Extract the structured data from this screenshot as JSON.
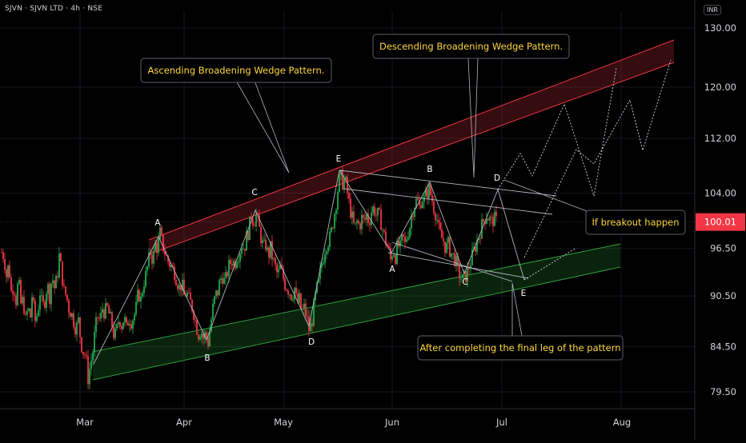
{
  "header": {
    "symbol_line": "SJVN · SJVN LTD · 4h · NSE"
  },
  "currency_label": "INR",
  "colors": {
    "up": "#22ab4e",
    "down": "#f23645",
    "bg": "#000000",
    "text": "#d1d4dc",
    "callout_text": "#ffd740",
    "price_tag": "#f23645",
    "red_channel": "#f23645",
    "green_channel": "#2e9e3c"
  },
  "chart_data": {
    "type": "candlestick",
    "title": "",
    "y_scale": "log",
    "ylim": [
      78,
      132
    ],
    "y_ticks": [
      "130.00",
      "120.00",
      "112.00",
      "104.00",
      "96.50",
      "90.50",
      "84.50",
      "79.50"
    ],
    "x_ticks": [
      "Mar",
      "Apr",
      "May",
      "Jun",
      "Jul",
      "Aug"
    ],
    "last_price": "100.01",
    "ohlc_path": [
      [
        0,
        96
      ],
      [
        3,
        95.5
      ],
      [
        6,
        93
      ],
      [
        9,
        94.5
      ],
      [
        12,
        91
      ],
      [
        15,
        92
      ],
      [
        18,
        90
      ],
      [
        21,
        92.5
      ],
      [
        24,
        89.5
      ],
      [
        27,
        90
      ],
      [
        30,
        87.5
      ],
      [
        33,
        89
      ],
      [
        36,
        88
      ],
      [
        38,
        90.5
      ],
      [
        42,
        87.5
      ],
      [
        45,
        88.5
      ],
      [
        48,
        91
      ],
      [
        51,
        89
      ],
      [
        54,
        90
      ],
      [
        57,
        92
      ],
      [
        60,
        90.5
      ],
      [
        63,
        93
      ],
      [
        66,
        91.5
      ],
      [
        69,
        92.5
      ],
      [
        72,
        95.5
      ],
      [
        75,
        93.5
      ],
      [
        78,
        91
      ],
      [
        81,
        90.5
      ],
      [
        84,
        89
      ],
      [
        87,
        88.5
      ],
      [
        90,
        87.5
      ],
      [
        93,
        86.5
      ],
      [
        96,
        87.5
      ],
      [
        99,
        85
      ],
      [
        102,
        84
      ],
      [
        105,
        83.5
      ],
      [
        108,
        81
      ],
      [
        111,
        82.5
      ],
      [
        114,
        84
      ],
      [
        117,
        86.5
      ],
      [
        120,
        88
      ],
      [
        123,
        87.5
      ],
      [
        126,
        89
      ],
      [
        129,
        88.5
      ],
      [
        132,
        89
      ],
      [
        135,
        88
      ],
      [
        138,
        87
      ],
      [
        141,
        85.5
      ],
      [
        144,
        86.5
      ],
      [
        147,
        88
      ],
      [
        150,
        87
      ],
      [
        153,
        88
      ],
      [
        156,
        86.5
      ],
      [
        159,
        88
      ],
      [
        162,
        87.5
      ],
      [
        165,
        88
      ],
      [
        168,
        89
      ],
      [
        171,
        91
      ],
      [
        174,
        90
      ],
      [
        177,
        92
      ],
      [
        180,
        93
      ],
      [
        183,
        94.5
      ],
      [
        186,
        96
      ],
      [
        189,
        95
      ],
      [
        192,
        97
      ],
      [
        195,
        96.5
      ],
      [
        198,
        98.5
      ],
      [
        201,
        97
      ],
      [
        204,
        96
      ],
      [
        207,
        95
      ],
      [
        210,
        94.5
      ],
      [
        213,
        94
      ],
      [
        216,
        93.5
      ],
      [
        219,
        92.5
      ],
      [
        222,
        91.5
      ],
      [
        225,
        92
      ],
      [
        228,
        90.5
      ],
      [
        231,
        91
      ],
      [
        234,
        90
      ],
      [
        237,
        89.5
      ],
      [
        240,
        88.5
      ],
      [
        243,
        87
      ],
      [
        246,
        86
      ],
      [
        249,
        86.5
      ],
      [
        252,
        85.5
      ],
      [
        255,
        86
      ],
      [
        258,
        85
      ],
      [
        261,
        87
      ],
      [
        264,
        89
      ],
      [
        267,
        90.5
      ],
      [
        270,
        91
      ],
      [
        273,
        92.5
      ],
      [
        276,
        93
      ],
      [
        279,
        92
      ],
      [
        282,
        93.5
      ],
      [
        285,
        94.5
      ],
      [
        288,
        95
      ],
      [
        291,
        94.5
      ],
      [
        294,
        95.5
      ],
      [
        297,
        96
      ],
      [
        300,
        97
      ],
      [
        303,
        96.5
      ],
      [
        306,
        98
      ],
      [
        309,
        99
      ],
      [
        312,
        101
      ],
      [
        315,
        100
      ],
      [
        318,
        101
      ],
      [
        321,
        99.5
      ],
      [
        324,
        98
      ],
      [
        327,
        96.5
      ],
      [
        330,
        97
      ],
      [
        333,
        95.5
      ],
      [
        336,
        96.5
      ],
      [
        339,
        95
      ],
      [
        342,
        94
      ],
      [
        345,
        93
      ],
      [
        348,
        94
      ],
      [
        351,
        93
      ],
      [
        354,
        92
      ],
      [
        357,
        91.5
      ],
      [
        360,
        91
      ],
      [
        363,
        90.5
      ],
      [
        366,
        91.5
      ],
      [
        369,
        89.5
      ],
      [
        372,
        90
      ],
      [
        375,
        88.5
      ],
      [
        378,
        89
      ],
      [
        381,
        88
      ],
      [
        384,
        86.5
      ],
      [
        387,
        87
      ],
      [
        390,
        89
      ],
      [
        393,
        91
      ],
      [
        396,
        92
      ],
      [
        399,
        94
      ],
      [
        402,
        95.5
      ],
      [
        405,
        97
      ],
      [
        408,
        97.5
      ],
      [
        411,
        98
      ],
      [
        414,
        100
      ],
      [
        417,
        102
      ],
      [
        420,
        104.5
      ],
      [
        423,
        106.5
      ],
      [
        426,
        105.5
      ],
      [
        429,
        106
      ],
      [
        432,
        104
      ],
      [
        435,
        102
      ],
      [
        438,
        100.5
      ],
      [
        441,
        99
      ],
      [
        444,
        100
      ],
      [
        447,
        99.5
      ],
      [
        450,
        100.5
      ],
      [
        453,
        100
      ],
      [
        456,
        101
      ],
      [
        459,
        100
      ],
      [
        462,
        101.5
      ],
      [
        465,
        102
      ],
      [
        468,
        101
      ],
      [
        471,
        101
      ],
      [
        474,
        100
      ],
      [
        477,
        98.5
      ],
      [
        480,
        97.5
      ],
      [
        483,
        96.5
      ],
      [
        486,
        95
      ],
      [
        489,
        96.5
      ],
      [
        492,
        95.5
      ],
      [
        495,
        97
      ],
      [
        498,
        96.5
      ],
      [
        501,
        98
      ],
      [
        504,
        97
      ],
      [
        507,
        98.5
      ],
      [
        510,
        99.5
      ],
      [
        513,
        101.5
      ],
      [
        516,
        102.5
      ],
      [
        519,
        103
      ],
      [
        522,
        102
      ],
      [
        525,
        103.5
      ],
      [
        528,
        103
      ],
      [
        531,
        104
      ],
      [
        534,
        104.5
      ],
      [
        537,
        103.5
      ],
      [
        540,
        102
      ],
      [
        543,
        101
      ],
      [
        546,
        99
      ],
      [
        549,
        98
      ],
      [
        552,
        97.5
      ],
      [
        555,
        96.5
      ],
      [
        558,
        97
      ],
      [
        561,
        96
      ],
      [
        564,
        95.5
      ],
      [
        567,
        95
      ],
      [
        570,
        93.5
      ],
      [
        573,
        93
      ],
      [
        576,
        92.5
      ],
      [
        579,
        92.8
      ],
      [
        582,
        93.5
      ],
      [
        585,
        94.5
      ],
      [
        588,
        95.5
      ],
      [
        591,
        96.5
      ],
      [
        594,
        97.5
      ],
      [
        597,
        98.5
      ],
      [
        600,
        99.5
      ],
      [
        603,
        100.5
      ],
      [
        606,
        101
      ],
      [
        609,
        100.5
      ],
      [
        612,
        100
      ],
      [
        615,
        100.5
      ],
      [
        618,
        100.01
      ]
    ],
    "annotations": [
      {
        "text": "Ascending Broadening Wedge Pattern."
      },
      {
        "text": "Descending Broadening Wedge Pattern."
      },
      {
        "text": "If breakout happen"
      },
      {
        "text": "After completing the final leg of the pattern"
      }
    ],
    "point_labels": {
      "ascending": [
        "A",
        "B",
        "C",
        "D",
        "E"
      ],
      "descending": [
        "A",
        "B",
        "C",
        "D",
        "E"
      ]
    }
  }
}
